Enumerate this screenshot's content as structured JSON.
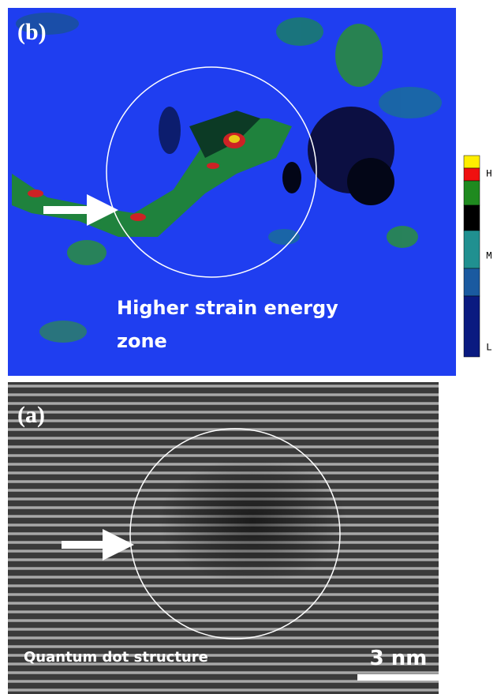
{
  "panel_b": {
    "label": "(b)",
    "caption_lines": [
      "Higher strain energy",
      "zone"
    ],
    "legend": [
      "H",
      "M",
      "L"
    ]
  },
  "panel_a": {
    "label": "(a)",
    "caption": "Quantum dot structure",
    "scale_bar": "3 nm"
  }
}
